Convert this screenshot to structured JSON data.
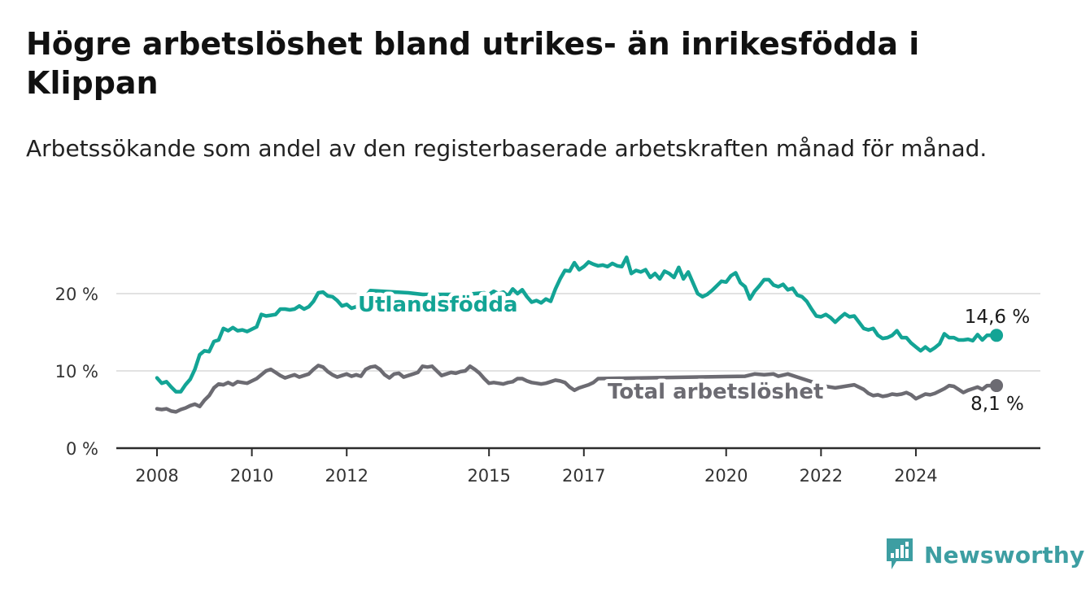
{
  "title": "Högre arbetslöshet bland utrikes- än inrikesfödda i Klippan",
  "subtitle": "Arbetssökande som andel av den registerbaserade arbetskraften månad för månad.",
  "brand": "Newsworthy",
  "colors": {
    "foreign": "#13a495",
    "total": "#6c6b72",
    "axis": "#2b2b2b",
    "grid": "#d9d9d9",
    "brand": "#3d9ea2"
  },
  "icons": {
    "logo": "bar-chart-logo-icon"
  },
  "chart_data": {
    "type": "line",
    "x_range": [
      2008.0,
      2025.75
    ],
    "ylim": [
      0,
      25
    ],
    "y_ticks": [
      {
        "value": 0,
        "label": "0 %"
      },
      {
        "value": 10,
        "label": "10 %"
      },
      {
        "value": 20,
        "label": "20 %"
      }
    ],
    "x_ticks": [
      {
        "value": 2008,
        "label": "2008"
      },
      {
        "value": 2010,
        "label": "2010"
      },
      {
        "value": 2012,
        "label": "2012"
      },
      {
        "value": 2015,
        "label": "2015"
      },
      {
        "value": 2017,
        "label": "2017"
      },
      {
        "value": 2020,
        "label": "2020"
      },
      {
        "value": 2022,
        "label": "2022"
      },
      {
        "value": 2024,
        "label": "2024"
      }
    ],
    "grid": "horizontal",
    "series": [
      {
        "name": "Utlandsfödda",
        "end_label": "14,6 %",
        "points": [
          [
            2008.0,
            9.1
          ],
          [
            2008.1,
            8.4
          ],
          [
            2008.2,
            8.6
          ],
          [
            2008.3,
            7.9
          ],
          [
            2008.4,
            7.3
          ],
          [
            2008.5,
            7.3
          ],
          [
            2008.6,
            8.2
          ],
          [
            2008.7,
            8.9
          ],
          [
            2008.8,
            10.2
          ],
          [
            2008.9,
            12.1
          ],
          [
            2009.0,
            12.6
          ],
          [
            2009.1,
            12.5
          ],
          [
            2009.2,
            13.8
          ],
          [
            2009.3,
            14.0
          ],
          [
            2009.4,
            15.5
          ],
          [
            2009.5,
            15.2
          ],
          [
            2009.6,
            15.6
          ],
          [
            2009.7,
            15.2
          ],
          [
            2009.8,
            15.3
          ],
          [
            2009.9,
            15.1
          ],
          [
            2010.0,
            15.4
          ],
          [
            2010.1,
            15.7
          ],
          [
            2010.2,
            17.3
          ],
          [
            2010.3,
            17.1
          ],
          [
            2010.4,
            17.2
          ],
          [
            2010.5,
            17.3
          ],
          [
            2010.6,
            18.0
          ],
          [
            2010.7,
            18.0
          ],
          [
            2010.8,
            17.9
          ],
          [
            2010.9,
            18.0
          ],
          [
            2011.0,
            18.4
          ],
          [
            2011.1,
            18.0
          ],
          [
            2011.2,
            18.3
          ],
          [
            2011.3,
            19.0
          ],
          [
            2011.4,
            20.1
          ],
          [
            2011.5,
            20.2
          ],
          [
            2011.6,
            19.7
          ],
          [
            2011.7,
            19.6
          ],
          [
            2011.8,
            19.1
          ],
          [
            2011.9,
            18.4
          ],
          [
            2012.0,
            18.6
          ],
          [
            2012.1,
            18.1
          ],
          [
            2012.2,
            18.3
          ],
          [
            2012.3,
            18.9
          ],
          [
            2012.4,
            19.6
          ],
          [
            2012.5,
            20.4
          ],
          [
            2013.3,
            20.1
          ],
          [
            2013.6,
            19.9
          ],
          [
            2014.0,
            19.9
          ],
          [
            2014.5,
            19.9
          ],
          [
            2014.9,
            20.1
          ],
          [
            2015.0,
            19.9
          ],
          [
            2015.1,
            20.3
          ],
          [
            2015.2,
            20.0
          ],
          [
            2015.3,
            20.2
          ],
          [
            2015.4,
            19.7
          ],
          [
            2015.5,
            20.6
          ],
          [
            2015.6,
            20.0
          ],
          [
            2015.7,
            20.5
          ],
          [
            2015.8,
            19.6
          ],
          [
            2015.9,
            18.9
          ],
          [
            2016.0,
            19.1
          ],
          [
            2016.1,
            18.8
          ],
          [
            2016.2,
            19.3
          ],
          [
            2016.3,
            19.0
          ],
          [
            2016.4,
            20.6
          ],
          [
            2016.5,
            21.9
          ],
          [
            2016.6,
            23.0
          ],
          [
            2016.7,
            22.9
          ],
          [
            2016.8,
            24.0
          ],
          [
            2016.9,
            23.1
          ],
          [
            2017.0,
            23.5
          ],
          [
            2017.1,
            24.1
          ],
          [
            2017.2,
            23.8
          ],
          [
            2017.3,
            23.6
          ],
          [
            2017.4,
            23.7
          ],
          [
            2017.5,
            23.5
          ],
          [
            2017.6,
            23.9
          ],
          [
            2017.7,
            23.6
          ],
          [
            2017.8,
            23.5
          ],
          [
            2017.9,
            24.7
          ],
          [
            2018.0,
            22.6
          ],
          [
            2018.1,
            23.0
          ],
          [
            2018.2,
            22.8
          ],
          [
            2018.3,
            23.1
          ],
          [
            2018.4,
            22.1
          ],
          [
            2018.5,
            22.6
          ],
          [
            2018.6,
            21.9
          ],
          [
            2018.7,
            22.9
          ],
          [
            2018.8,
            22.6
          ],
          [
            2018.9,
            22.1
          ],
          [
            2019.0,
            23.4
          ],
          [
            2019.1,
            21.9
          ],
          [
            2019.2,
            22.8
          ],
          [
            2019.3,
            21.4
          ],
          [
            2019.4,
            20.0
          ],
          [
            2019.5,
            19.6
          ],
          [
            2019.6,
            19.9
          ],
          [
            2019.7,
            20.4
          ],
          [
            2019.8,
            21.0
          ],
          [
            2019.9,
            21.6
          ],
          [
            2020.0,
            21.5
          ],
          [
            2020.1,
            22.3
          ],
          [
            2020.2,
            22.7
          ],
          [
            2020.3,
            21.4
          ],
          [
            2020.4,
            20.9
          ],
          [
            2020.5,
            19.3
          ],
          [
            2020.6,
            20.3
          ],
          [
            2020.7,
            21.0
          ],
          [
            2020.8,
            21.8
          ],
          [
            2020.9,
            21.8
          ],
          [
            2021.0,
            21.1
          ],
          [
            2021.1,
            20.9
          ],
          [
            2021.2,
            21.2
          ],
          [
            2021.3,
            20.5
          ],
          [
            2021.4,
            20.7
          ],
          [
            2021.5,
            19.8
          ],
          [
            2021.6,
            19.6
          ],
          [
            2021.7,
            19.0
          ],
          [
            2021.8,
            18.0
          ],
          [
            2021.9,
            17.1
          ],
          [
            2022.0,
            17.0
          ],
          [
            2022.1,
            17.3
          ],
          [
            2022.2,
            16.9
          ],
          [
            2022.3,
            16.3
          ],
          [
            2022.4,
            16.9
          ],
          [
            2022.5,
            17.4
          ],
          [
            2022.6,
            17.0
          ],
          [
            2022.7,
            17.1
          ],
          [
            2022.8,
            16.3
          ],
          [
            2022.9,
            15.5
          ],
          [
            2023.0,
            15.3
          ],
          [
            2023.1,
            15.5
          ],
          [
            2023.2,
            14.6
          ],
          [
            2023.3,
            14.2
          ],
          [
            2023.4,
            14.3
          ],
          [
            2023.5,
            14.6
          ],
          [
            2023.6,
            15.2
          ],
          [
            2023.7,
            14.3
          ],
          [
            2023.8,
            14.3
          ],
          [
            2023.9,
            13.6
          ],
          [
            2024.0,
            13.1
          ],
          [
            2024.1,
            12.6
          ],
          [
            2024.2,
            13.1
          ],
          [
            2024.3,
            12.6
          ],
          [
            2024.4,
            13.0
          ],
          [
            2024.5,
            13.5
          ],
          [
            2024.6,
            14.8
          ],
          [
            2024.7,
            14.3
          ],
          [
            2024.8,
            14.3
          ],
          [
            2024.9,
            14.0
          ],
          [
            2025.0,
            14.0
          ],
          [
            2025.1,
            14.1
          ],
          [
            2025.2,
            13.9
          ],
          [
            2025.3,
            14.7
          ],
          [
            2025.4,
            14.0
          ],
          [
            2025.5,
            14.6
          ],
          [
            2025.7,
            14.6
          ]
        ]
      },
      {
        "name": "Total arbetslöshet",
        "end_label": "8,1 %",
        "points": [
          [
            2008.0,
            5.1
          ],
          [
            2008.1,
            5.0
          ],
          [
            2008.2,
            5.1
          ],
          [
            2008.3,
            4.8
          ],
          [
            2008.4,
            4.7
          ],
          [
            2008.5,
            5.0
          ],
          [
            2008.6,
            5.2
          ],
          [
            2008.7,
            5.5
          ],
          [
            2008.8,
            5.7
          ],
          [
            2008.9,
            5.4
          ],
          [
            2009.0,
            6.2
          ],
          [
            2009.1,
            6.8
          ],
          [
            2009.2,
            7.8
          ],
          [
            2009.3,
            8.3
          ],
          [
            2009.4,
            8.2
          ],
          [
            2009.5,
            8.5
          ],
          [
            2009.6,
            8.2
          ],
          [
            2009.7,
            8.6
          ],
          [
            2009.8,
            8.5
          ],
          [
            2009.9,
            8.4
          ],
          [
            2010.0,
            8.7
          ],
          [
            2010.1,
            9.0
          ],
          [
            2010.2,
            9.5
          ],
          [
            2010.3,
            10.0
          ],
          [
            2010.4,
            10.2
          ],
          [
            2010.5,
            9.8
          ],
          [
            2010.6,
            9.4
          ],
          [
            2010.7,
            9.1
          ],
          [
            2010.8,
            9.3
          ],
          [
            2010.9,
            9.5
          ],
          [
            2011.0,
            9.2
          ],
          [
            2011.1,
            9.4
          ],
          [
            2011.2,
            9.6
          ],
          [
            2011.3,
            10.2
          ],
          [
            2011.4,
            10.7
          ],
          [
            2011.5,
            10.5
          ],
          [
            2011.6,
            9.9
          ],
          [
            2011.7,
            9.5
          ],
          [
            2011.8,
            9.2
          ],
          [
            2011.9,
            9.4
          ],
          [
            2012.0,
            9.6
          ],
          [
            2012.1,
            9.3
          ],
          [
            2012.2,
            9.5
          ],
          [
            2012.3,
            9.3
          ],
          [
            2012.4,
            10.2
          ],
          [
            2012.5,
            10.5
          ],
          [
            2012.6,
            10.6
          ],
          [
            2012.7,
            10.2
          ],
          [
            2012.8,
            9.5
          ],
          [
            2012.9,
            9.1
          ],
          [
            2013.0,
            9.6
          ],
          [
            2013.1,
            9.7
          ],
          [
            2013.2,
            9.2
          ],
          [
            2013.3,
            9.4
          ],
          [
            2013.4,
            9.6
          ],
          [
            2013.5,
            9.8
          ],
          [
            2013.6,
            10.6
          ],
          [
            2013.7,
            10.5
          ],
          [
            2013.8,
            10.6
          ],
          [
            2013.9,
            10.0
          ],
          [
            2014.0,
            9.4
          ],
          [
            2014.1,
            9.6
          ],
          [
            2014.2,
            9.8
          ],
          [
            2014.3,
            9.7
          ],
          [
            2014.4,
            9.9
          ],
          [
            2014.5,
            10.0
          ],
          [
            2014.6,
            10.6
          ],
          [
            2014.7,
            10.2
          ],
          [
            2014.8,
            9.7
          ],
          [
            2014.9,
            9.0
          ],
          [
            2015.0,
            8.4
          ],
          [
            2015.1,
            8.5
          ],
          [
            2015.2,
            8.4
          ],
          [
            2015.3,
            8.3
          ],
          [
            2015.4,
            8.5
          ],
          [
            2015.5,
            8.6
          ],
          [
            2015.6,
            9.0
          ],
          [
            2015.7,
            9.0
          ],
          [
            2015.8,
            8.7
          ],
          [
            2015.9,
            8.5
          ],
          [
            2016.0,
            8.4
          ],
          [
            2016.1,
            8.3
          ],
          [
            2016.2,
            8.4
          ],
          [
            2016.3,
            8.6
          ],
          [
            2016.4,
            8.8
          ],
          [
            2016.5,
            8.7
          ],
          [
            2016.6,
            8.5
          ],
          [
            2016.7,
            7.9
          ],
          [
            2016.8,
            7.5
          ],
          [
            2016.9,
            7.8
          ],
          [
            2017.0,
            8.0
          ],
          [
            2017.1,
            8.2
          ],
          [
            2017.2,
            8.5
          ],
          [
            2017.3,
            9.0
          ],
          [
            2020.4,
            9.3
          ],
          [
            2020.6,
            9.6
          ],
          [
            2020.8,
            9.5
          ],
          [
            2021.0,
            9.6
          ],
          [
            2021.1,
            9.3
          ],
          [
            2021.3,
            9.6
          ],
          [
            2021.5,
            9.2
          ],
          [
            2022.1,
            8.0
          ],
          [
            2022.3,
            7.8
          ],
          [
            2022.5,
            8.0
          ],
          [
            2022.7,
            8.2
          ],
          [
            2022.9,
            7.6
          ],
          [
            2023.0,
            7.1
          ],
          [
            2023.1,
            6.8
          ],
          [
            2023.2,
            6.9
          ],
          [
            2023.3,
            6.7
          ],
          [
            2023.4,
            6.8
          ],
          [
            2023.5,
            7.0
          ],
          [
            2023.6,
            6.9
          ],
          [
            2023.7,
            7.0
          ],
          [
            2023.8,
            7.2
          ],
          [
            2023.9,
            6.9
          ],
          [
            2024.0,
            6.4
          ],
          [
            2024.1,
            6.7
          ],
          [
            2024.2,
            7.0
          ],
          [
            2024.3,
            6.9
          ],
          [
            2024.4,
            7.1
          ],
          [
            2024.5,
            7.4
          ],
          [
            2024.6,
            7.7
          ],
          [
            2024.7,
            8.1
          ],
          [
            2024.8,
            8.0
          ],
          [
            2024.9,
            7.6
          ],
          [
            2025.0,
            7.2
          ],
          [
            2025.1,
            7.5
          ],
          [
            2025.2,
            7.7
          ],
          [
            2025.3,
            7.9
          ],
          [
            2025.4,
            7.6
          ],
          [
            2025.5,
            8.1
          ],
          [
            2025.7,
            8.1
          ]
        ]
      }
    ]
  }
}
